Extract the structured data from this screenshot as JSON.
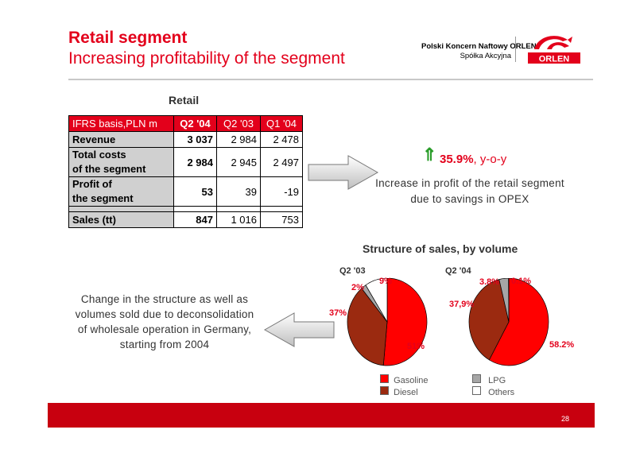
{
  "header": {
    "title": "Retail segment",
    "subtitle": "Increasing profitability of the segment",
    "company_line1": "Polski Koncern Naftowy ORLEN",
    "company_line2": "Spółka Akcyjna",
    "logo_text": "ORLEN"
  },
  "table": {
    "title": "Retail",
    "header": [
      "IFRS basis,PLN m",
      "Q2 '04",
      "Q2 '03",
      "Q1 '04"
    ],
    "rows": [
      {
        "label": [
          "Revenue"
        ],
        "values": [
          "3 037",
          "2 984",
          "2 478"
        ]
      },
      {
        "label": [
          "Total costs",
          "of the segment"
        ],
        "values": [
          "2 984",
          "2 945",
          "2 497"
        ]
      },
      {
        "label": [
          "Profit of",
          "the segment"
        ],
        "values": [
          "53",
          "39",
          "-19"
        ]
      },
      {
        "label": [
          "Sales (tt)"
        ],
        "values": [
          "847",
          "1 016",
          "753"
        ]
      }
    ]
  },
  "highlight": {
    "arrow": "⇑",
    "percent": "35.9%",
    "suffix": ", y-o-y",
    "explanation": "Increase in profit of the retail segment due to savings in OPEX"
  },
  "structure_note": "Change in the structure as well as volumes sold due to deconsolidation of wholesale operation in Germany, starting from 2004",
  "colors": {
    "accent_red": "#e3001b",
    "gasoline": "#ff0000",
    "diesel": "#9b2a10",
    "lpg": "#a6a6a6",
    "others": "#ffffff",
    "arrow_green": "#2a9d2a"
  },
  "page_number": "28",
  "chart_data": [
    {
      "type": "pie",
      "title": "Structure of sales, by volume",
      "name": "Q2 '03",
      "labels": [
        "Gasoline",
        "Diesel",
        "LPG",
        "Others"
      ],
      "values": [
        51,
        37,
        2,
        9
      ],
      "value_labels": [
        "51%",
        "37%",
        "2%",
        "9%"
      ]
    },
    {
      "type": "pie",
      "title": "Structure of sales, by volume",
      "name": "Q2 '04",
      "labels": [
        "Gasoline",
        "Diesel",
        "LPG",
        "Others"
      ],
      "values": [
        58.2,
        37.9,
        3.8,
        0.1
      ],
      "value_labels": [
        "58.2%",
        "37,9%",
        "3.8%",
        "0.1%"
      ]
    }
  ],
  "legend": [
    {
      "label": "Gasoline",
      "color": "#ff0000"
    },
    {
      "label": "Diesel",
      "color": "#9b2a10"
    },
    {
      "label": "LPG",
      "color": "#a6a6a6"
    },
    {
      "label": "Others",
      "color": "#ffffff"
    }
  ]
}
